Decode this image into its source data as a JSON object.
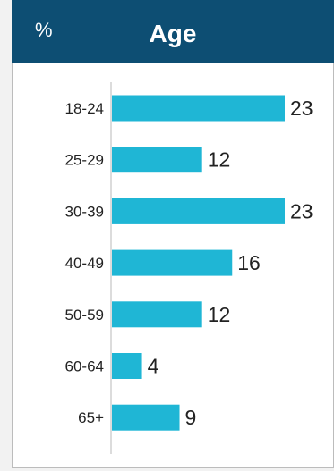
{
  "header": {
    "percent_symbol": "%",
    "title": "Age"
  },
  "colors": {
    "header_bg": "#0d4e73",
    "bar": "#1fb6d5",
    "text": "#222222",
    "axis": "#d0d0d0"
  },
  "chart_data": {
    "type": "bar",
    "orientation": "horizontal",
    "title": "Age",
    "unit": "%",
    "categories": [
      "18-24",
      "25-29",
      "30-39",
      "40-49",
      "50-59",
      "60-64",
      "65+"
    ],
    "values": [
      23,
      12,
      23,
      16,
      12,
      4,
      9
    ],
    "xlim": [
      0,
      23
    ],
    "grid": false,
    "legend": "none",
    "data_labels": true
  }
}
